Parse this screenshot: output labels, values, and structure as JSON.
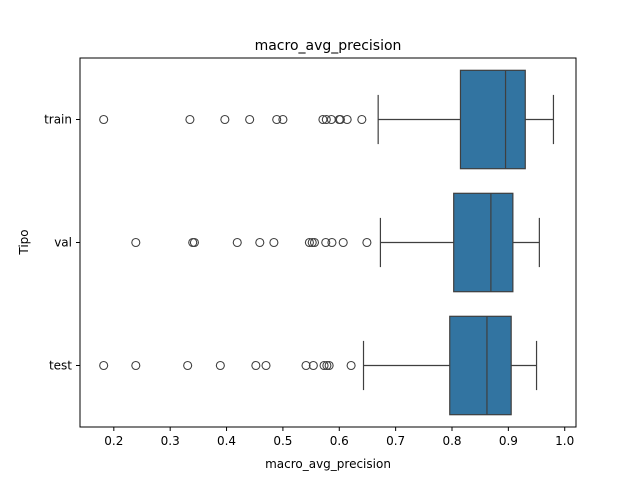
{
  "chart_data": {
    "type": "boxplot",
    "orientation": "horizontal",
    "title": "macro_avg_precision",
    "xlabel": "macro_avg_precision",
    "ylabel": "Tipo",
    "xlim": [
      0.14,
      1.02
    ],
    "xticks": [
      0.2,
      0.3,
      0.4,
      0.5,
      0.6,
      0.7,
      0.8,
      0.9,
      1.0
    ],
    "xtick_labels": [
      "0.2",
      "0.3",
      "0.4",
      "0.5",
      "0.6",
      "0.7",
      "0.8",
      "0.9",
      "1.0"
    ],
    "categories": [
      "train",
      "val",
      "test"
    ],
    "box_color": "#3274a1",
    "grid": false,
    "boxes": [
      {
        "category": "train",
        "whisker_low": 0.669,
        "q1": 0.815,
        "median": 0.895,
        "q3": 0.93,
        "whisker_high": 0.98,
        "outliers": [
          0.182,
          0.335,
          0.397,
          0.441,
          0.489,
          0.5,
          0.571,
          0.577,
          0.586,
          0.6,
          0.602,
          0.614,
          0.64
        ]
      },
      {
        "category": "val",
        "whisker_low": 0.673,
        "q1": 0.803,
        "median": 0.869,
        "q3": 0.908,
        "whisker_high": 0.955,
        "outliers": [
          0.239,
          0.34,
          0.343,
          0.419,
          0.459,
          0.484,
          0.547,
          0.552,
          0.556,
          0.576,
          0.587,
          0.607,
          0.649
        ]
      },
      {
        "category": "test",
        "whisker_low": 0.643,
        "q1": 0.796,
        "median": 0.862,
        "q3": 0.905,
        "whisker_high": 0.95,
        "outliers": [
          0.182,
          0.239,
          0.331,
          0.389,
          0.452,
          0.47,
          0.541,
          0.554,
          0.573,
          0.578,
          0.582,
          0.621
        ]
      }
    ]
  }
}
